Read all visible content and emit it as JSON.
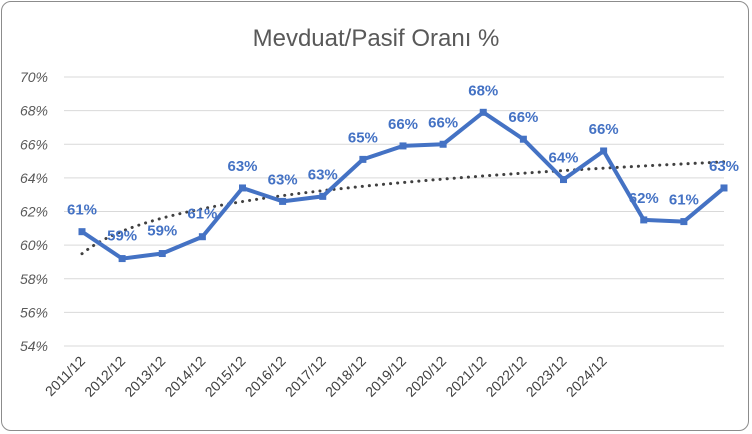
{
  "chart_data": {
    "type": "line",
    "title": "Mevduat/Pasif Oranı %",
    "xlabel": "",
    "ylabel": "",
    "categories": [
      "2011/12",
      "2012/12",
      "2013/12",
      "2014/12",
      "2015/12",
      "2016/12",
      "2017/12",
      "2018/12",
      "2019/12",
      "2020/12",
      "2021/12",
      "2022/12",
      "2023/12",
      "2024/12",
      "",
      "",
      ""
    ],
    "x_tick_labels": [
      "2011/12",
      "2012/12",
      "2013/12",
      "2014/12",
      "2015/12",
      "2016/12",
      "2017/12",
      "2018/12",
      "2019/12",
      "2020/12",
      "2021/12",
      "2022/12",
      "2023/12",
      "2024/12"
    ],
    "series": [
      {
        "values": [
          60.8,
          59.2,
          59.5,
          60.5,
          63.4,
          62.6,
          62.9,
          65.1,
          65.9,
          66.0,
          67.9,
          66.3,
          63.9,
          65.6,
          61.5,
          61.4,
          63.4
        ],
        "data_labels": [
          "61%",
          "59%",
          "59%",
          "61%",
          "63%",
          "63%",
          "63%",
          "65%",
          "66%",
          "66%",
          "68%",
          "66%",
          "64%",
          "66%",
          "62%",
          "61%",
          "63%"
        ],
        "color": "#4472c4"
      }
    ],
    "trendline": {
      "type": "logarithmic",
      "style": "dotted",
      "color": "#404040"
    },
    "ylim": [
      54,
      70
    ],
    "y_ticks": [
      "54%",
      "56%",
      "58%",
      "60%",
      "62%",
      "64%",
      "66%",
      "68%",
      "70%"
    ],
    "grid": true,
    "legend": "none"
  }
}
